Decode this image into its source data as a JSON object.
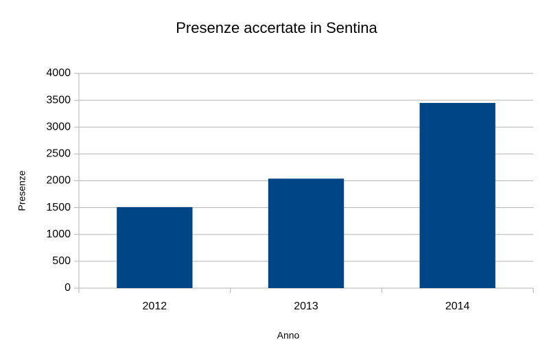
{
  "chart_data": {
    "type": "bar",
    "title": "Presenze accertate in Sentina",
    "x_label": "Anno",
    "y_label": "Presenze",
    "categories": [
      "2012",
      "2013",
      "2014"
    ],
    "values": [
      1510,
      2040,
      3450
    ],
    "color": "#004586",
    "ylim": [
      0,
      4000
    ],
    "yticks": [
      0,
      500,
      1000,
      1500,
      2000,
      2500,
      3000,
      3500,
      4000
    ],
    "grid": true
  }
}
